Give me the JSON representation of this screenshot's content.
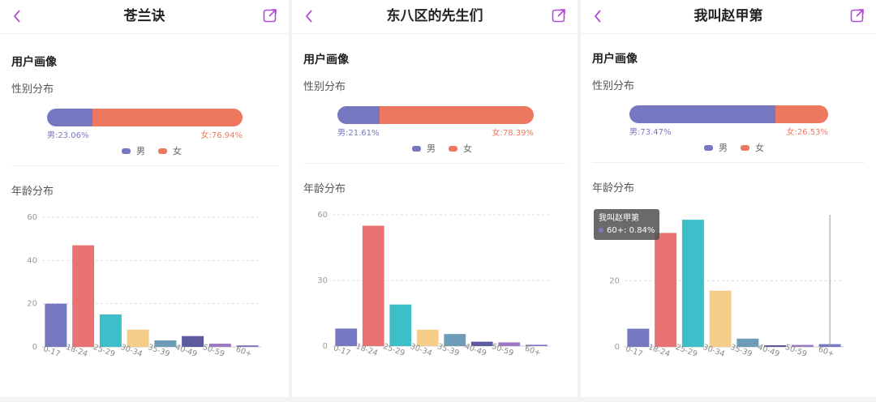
{
  "colors": {
    "male": "#7577c0",
    "female": "#ee7760",
    "accent": "#b04bd8",
    "age_bars": [
      "#7577c0",
      "#e97373",
      "#3dbfc9",
      "#f5cd88",
      "#6d9cb8",
      "#5e5aa0",
      "#9c79c1",
      "#7a78c2"
    ]
  },
  "section_title": "用户画像",
  "gender_title": "性别分布",
  "age_title": "年龄分布",
  "legend": {
    "male": "男",
    "female": "女"
  },
  "panels": [
    {
      "title": "苍兰诀",
      "gender": {
        "male_label": "男:23.06%",
        "female_label": "女:76.94%",
        "male_pct": 23.06,
        "female_pct": 76.94
      }
    },
    {
      "title": "东八区的先生们",
      "gender": {
        "male_label": "男:21.61%",
        "female_label": "女:78.39%",
        "male_pct": 21.61,
        "female_pct": 78.39
      }
    },
    {
      "title": "我叫赵甲第",
      "gender": {
        "male_label": "男:73.47%",
        "female_label": "女:26.53%",
        "male_pct": 73.47,
        "female_pct": 26.53
      },
      "tooltip": {
        "title": "我叫赵甲第",
        "text": "60+: 0.84%"
      }
    }
  ],
  "chart_data": [
    {
      "type": "bar",
      "title": "",
      "categories": [
        "0-17",
        "18-24",
        "25-29",
        "30-34",
        "35-39",
        "40-49",
        "50-59",
        "60+"
      ],
      "values": [
        20,
        47,
        15,
        8,
        3,
        5,
        1.5,
        0.7
      ],
      "yticks": [
        0,
        20,
        40,
        60
      ],
      "ylim": [
        0,
        60
      ],
      "grid": true
    },
    {
      "type": "bar",
      "title": "",
      "categories": [
        "0-17",
        "18-24",
        "25-29",
        "30-34",
        "35-39",
        "40-49",
        "50-59",
        "60+"
      ],
      "values": [
        8,
        55,
        19,
        7.5,
        5.5,
        2,
        1.7,
        0.6
      ],
      "yticks": [
        0,
        30,
        60
      ],
      "ylim": [
        0,
        60
      ],
      "grid": true
    },
    {
      "type": "bar",
      "title": "",
      "categories": [
        "0-17",
        "18-24",
        "25-29",
        "30-34",
        "35-39",
        "40-49",
        "50-59",
        "60+"
      ],
      "values": [
        5.5,
        34.5,
        38.5,
        17,
        2.5,
        0.5,
        0.6,
        0.84
      ],
      "yticks": [
        0,
        20
      ],
      "ylim": [
        0,
        40
      ],
      "grid": true
    }
  ]
}
